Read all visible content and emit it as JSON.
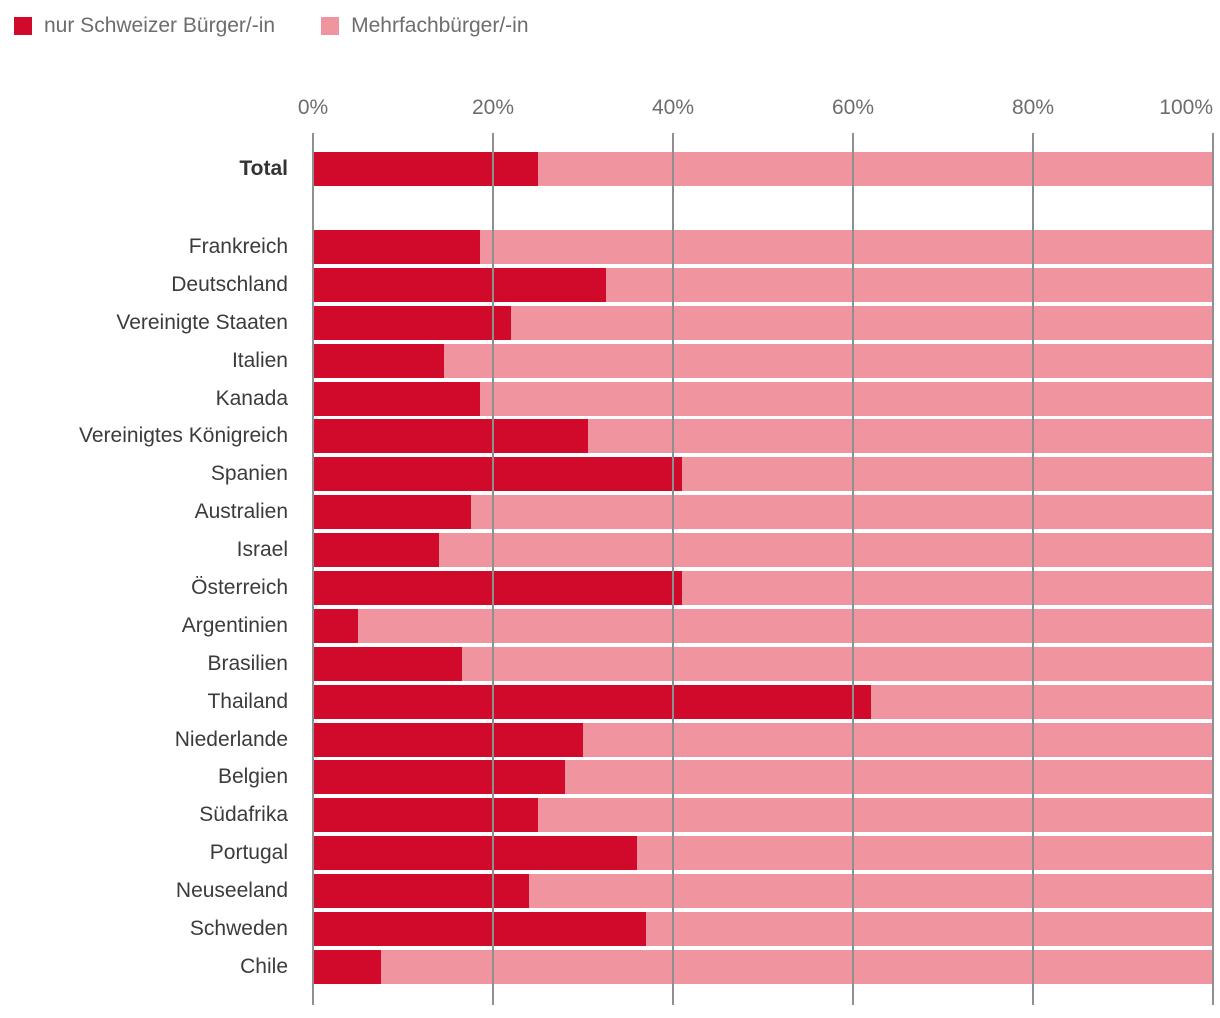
{
  "legend": {
    "items": [
      {
        "label": "nur Schweizer Bürger/-in",
        "color": "#d10a2c"
      },
      {
        "label": "Mehrfachbürger/-in",
        "color": "#f0949f"
      }
    ]
  },
  "chart_data": {
    "type": "bar",
    "orientation": "horizontal",
    "stacked": true,
    "unit": "%",
    "xlim": [
      0,
      100
    ],
    "grid": "vertical",
    "legend_position": "top-left",
    "axis_position": "top",
    "x_ticks": [
      {
        "value": 0,
        "label": "0%"
      },
      {
        "value": 20,
        "label": "20%"
      },
      {
        "value": 40,
        "label": "40%"
      },
      {
        "value": 60,
        "label": "60%"
      },
      {
        "value": 80,
        "label": "80%"
      },
      {
        "value": 100,
        "label": "100%"
      }
    ],
    "emphasized_index": 0,
    "gap_after_index": 0,
    "categories": [
      "Total",
      "Frankreich",
      "Deutschland",
      "Vereinigte Staaten",
      "Italien",
      "Kanada",
      "Vereinigtes Königreich",
      "Spanien",
      "Australien",
      "Israel",
      "Österreich",
      "Argentinien",
      "Brasilien",
      "Thailand",
      "Niederlande",
      "Belgien",
      "Südafrika",
      "Portugal",
      "Neuseeland",
      "Schweden",
      "Chile"
    ],
    "series": [
      {
        "name": "nur Schweizer Bürger/-in",
        "color": "#d10a2c",
        "values": [
          25,
          18.5,
          32.5,
          22,
          14.5,
          18.5,
          30.5,
          41,
          17.5,
          14,
          41,
          5,
          16.5,
          62,
          30,
          28,
          25,
          36,
          24,
          37,
          7.5
        ]
      },
      {
        "name": "Mehrfachbürger/-in",
        "color": "#f0949f",
        "values": [
          75,
          81.5,
          67.5,
          78,
          85.5,
          81.5,
          69.5,
          59,
          82.5,
          86,
          59,
          95,
          83.5,
          38,
          70,
          72,
          75,
          64,
          76,
          63,
          92.5
        ]
      }
    ]
  }
}
